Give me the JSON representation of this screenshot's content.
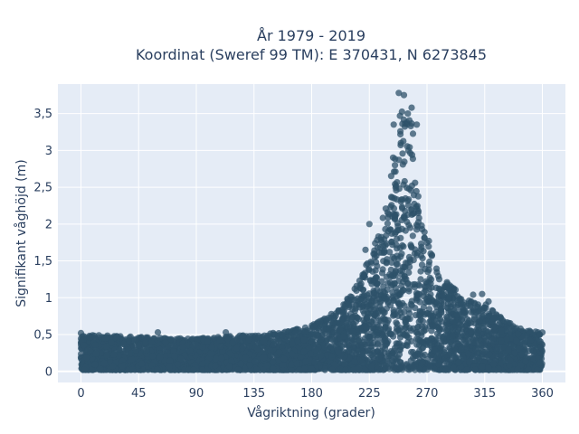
{
  "chart_data": {
    "type": "scatter",
    "title_line1": "År 1979 - 2019",
    "title_line2": "Koordinat (Sweref 99 TM): E 370431, N 6273845",
    "xlabel": "Vågriktning (grader)",
    "ylabel": "Signifikant våghöjd (m)",
    "xlim": [
      -18,
      378
    ],
    "ylim": [
      -0.15,
      3.9
    ],
    "xticks": [
      0,
      45,
      90,
      135,
      180,
      225,
      270,
      315,
      360
    ],
    "xtick_labels": [
      "0",
      "45",
      "90",
      "135",
      "180",
      "225",
      "270",
      "315",
      "360"
    ],
    "yticks": [
      0,
      0.5,
      1,
      1.5,
      2,
      2.5,
      3,
      3.5
    ],
    "ytick_labels": [
      "0",
      "0,5",
      "1",
      "1,5",
      "2",
      "2,5",
      "3",
      "3,5"
    ],
    "grid": true,
    "plot_bgcolor": "#e5ecf6",
    "marker_color": "#2e5169",
    "upper_envelope": [
      [
        0,
        0.52
      ],
      [
        45,
        0.48
      ],
      [
        90,
        0.46
      ],
      [
        135,
        0.52
      ],
      [
        160,
        0.56
      ],
      [
        180,
        0.65
      ],
      [
        200,
        0.85
      ],
      [
        215,
        1.2
      ],
      [
        225,
        1.6
      ],
      [
        235,
        2.1
      ],
      [
        242,
        2.8
      ],
      [
        245,
        3.3
      ],
      [
        248,
        3.78
      ],
      [
        252,
        3.72
      ],
      [
        255,
        3.55
      ],
      [
        258,
        3.58
      ],
      [
        262,
        2.9
      ],
      [
        265,
        2.3
      ],
      [
        270,
        1.9
      ],
      [
        280,
        1.4
      ],
      [
        290,
        1.2
      ],
      [
        300,
        1.0
      ],
      [
        315,
        0.95
      ],
      [
        330,
        0.72
      ],
      [
        345,
        0.58
      ],
      [
        360,
        0.55
      ]
    ],
    "notable_points": [
      {
        "x": 248,
        "y": 3.78
      },
      {
        "x": 252,
        "y": 3.75
      },
      {
        "x": 258,
        "y": 3.58
      },
      {
        "x": 255,
        "y": 3.5
      },
      {
        "x": 244,
        "y": 3.35
      },
      {
        "x": 262,
        "y": 3.35
      },
      {
        "x": 225,
        "y": 2.0
      },
      {
        "x": 263,
        "y": 2.15
      },
      {
        "x": 222,
        "y": 1.65
      },
      {
        "x": 313,
        "y": 1.05
      },
      {
        "x": 306,
        "y": 1.04
      },
      {
        "x": 318,
        "y": 0.95
      },
      {
        "x": 322,
        "y": 0.72
      },
      {
        "x": 343,
        "y": 0.58
      },
      {
        "x": 350,
        "y": 0.55
      },
      {
        "x": 60,
        "y": 0.53
      },
      {
        "x": 0,
        "y": 0.52
      },
      {
        "x": 113,
        "y": 0.53
      }
    ],
    "n_points": 5200
  }
}
